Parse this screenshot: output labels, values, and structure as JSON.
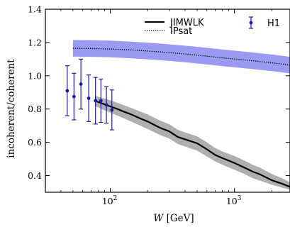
{
  "chart_data": {
    "type": "line",
    "xscale": "log",
    "xlim": [
      30,
      2800
    ],
    "ylim": [
      0.3,
      1.4
    ],
    "xlabel_var": "W",
    "xlabel_unit": "[GeV]",
    "ylabel": "incoherent/coherent",
    "x_ticks": [
      {
        "value": 100,
        "base": "10",
        "exp": "2"
      },
      {
        "value": 1000,
        "base": "10",
        "exp": "3"
      }
    ],
    "y_ticks": [
      {
        "value": 0.4,
        "label": "0.4"
      },
      {
        "value": 0.6,
        "label": "0.6"
      },
      {
        "value": 0.8,
        "label": "0.8"
      },
      {
        "value": 1.0,
        "label": "1.0"
      },
      {
        "value": 1.2,
        "label": "1.2"
      },
      {
        "value": 1.4,
        "label": "1.4"
      }
    ],
    "grid": false,
    "legend_position": "top-right",
    "series": [
      {
        "name": "JIMWLK",
        "style": "solid",
        "color": "#000000",
        "band_color": "#a6a6a6",
        "x": [
          75,
          85,
          95,
          110,
          130,
          150,
          175,
          200,
          250,
          300,
          350,
          400,
          500,
          600,
          700,
          800,
          1000,
          1200,
          1400,
          1600,
          2000,
          2400,
          2800
        ],
        "y": [
          0.85,
          0.835,
          0.822,
          0.805,
          0.783,
          0.765,
          0.743,
          0.725,
          0.688,
          0.665,
          0.632,
          0.618,
          0.594,
          0.558,
          0.524,
          0.505,
          0.476,
          0.448,
          0.424,
          0.408,
          0.372,
          0.352,
          0.333
        ],
        "band_low": [
          0.82,
          0.8,
          0.785,
          0.765,
          0.743,
          0.722,
          0.7,
          0.68,
          0.645,
          0.622,
          0.59,
          0.575,
          0.55,
          0.515,
          0.485,
          0.465,
          0.435,
          0.41,
          0.385,
          0.37,
          0.345,
          0.328,
          0.315
        ],
        "band_high": [
          0.88,
          0.868,
          0.858,
          0.842,
          0.822,
          0.805,
          0.785,
          0.768,
          0.732,
          0.708,
          0.675,
          0.66,
          0.636,
          0.6,
          0.565,
          0.545,
          0.518,
          0.49,
          0.465,
          0.448,
          0.41,
          0.385,
          0.36
        ]
      },
      {
        "name": "IPsat",
        "style": "dotted",
        "color": "#000000",
        "band_color": "#8f8fef",
        "x": [
          50,
          70,
          100,
          150,
          200,
          300,
          400,
          600,
          800,
          1000,
          1500,
          2000,
          2800
        ],
        "y": [
          1.165,
          1.164,
          1.161,
          1.155,
          1.149,
          1.139,
          1.131,
          1.118,
          1.108,
          1.101,
          1.088,
          1.078,
          1.064
        ],
        "band_low": [
          1.115,
          1.114,
          1.111,
          1.105,
          1.099,
          1.089,
          1.081,
          1.068,
          1.058,
          1.051,
          1.038,
          1.028,
          1.014
        ],
        "band_high": [
          1.215,
          1.214,
          1.211,
          1.205,
          1.199,
          1.189,
          1.181,
          1.168,
          1.158,
          1.151,
          1.138,
          1.128,
          1.114
        ]
      },
      {
        "name": "H1",
        "style": "errorbar",
        "color": "#1a1aa6",
        "points": [
          {
            "x": 45,
            "y": 0.91,
            "err_low": 0.15,
            "err_high": 0.15
          },
          {
            "x": 51,
            "y": 0.875,
            "err_low": 0.14,
            "err_high": 0.14
          },
          {
            "x": 58,
            "y": 0.95,
            "err_low": 0.15,
            "err_high": 0.15
          },
          {
            "x": 67,
            "y": 0.865,
            "err_low": 0.14,
            "err_high": 0.14
          },
          {
            "x": 76,
            "y": 0.85,
            "err_low": 0.14,
            "err_high": 0.14
          },
          {
            "x": 84,
            "y": 0.85,
            "err_low": 0.13,
            "err_high": 0.13
          },
          {
            "x": 93,
            "y": 0.825,
            "err_low": 0.11,
            "err_high": 0.11
          },
          {
            "x": 103,
            "y": 0.795,
            "err_low": 0.12,
            "err_high": 0.12
          }
        ]
      }
    ]
  }
}
